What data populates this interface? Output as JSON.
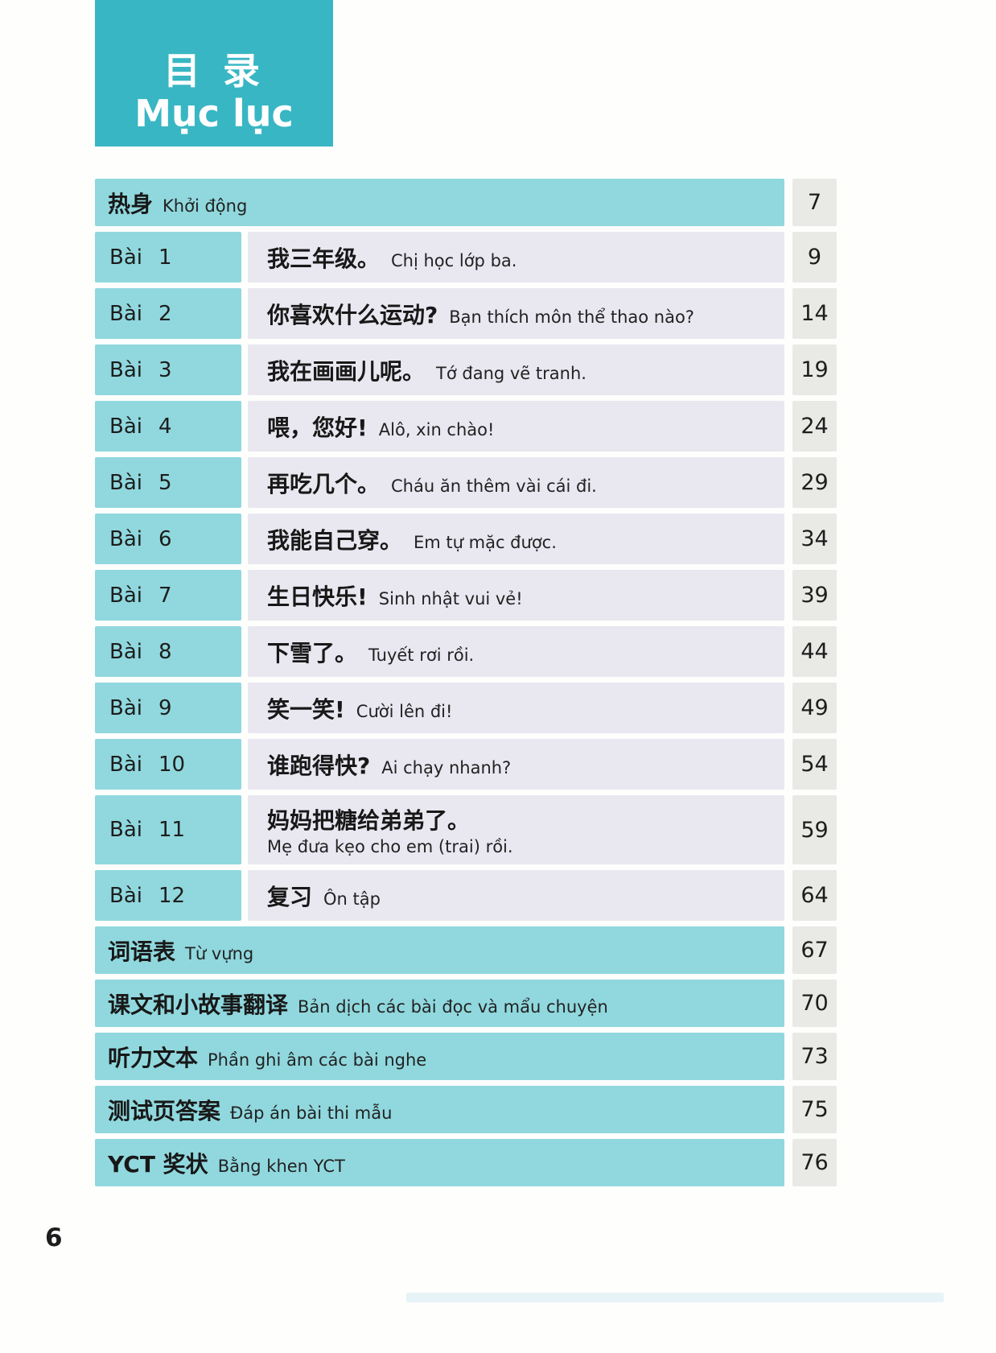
{
  "header": {
    "title_zh": "目 录",
    "title_vi": "Mục lục"
  },
  "footer": {
    "page_number": "6"
  },
  "colors": {
    "header_teal": "#38b6c3",
    "row_teal": "#90d8de",
    "row_lavender": "#e9e7f0",
    "page_cell_gray": "#e9e9e6",
    "text_dark": "#1d1d1d"
  },
  "toc": {
    "rows": [
      {
        "type": "section",
        "zh": "热身",
        "vi": "Khởi động",
        "page": "7"
      },
      {
        "type": "lesson",
        "label": "Bài",
        "num": "1",
        "zh": "我三年级。",
        "vi": "Chị học lớp ba.",
        "page": "9"
      },
      {
        "type": "lesson",
        "label": "Bài",
        "num": "2",
        "zh": "你喜欢什么运动?",
        "vi": "Bạn thích môn thể thao nào?",
        "page": "14"
      },
      {
        "type": "lesson",
        "label": "Bài",
        "num": "3",
        "zh": "我在画画儿呢。",
        "vi": "Tớ đang vẽ tranh.",
        "page": "19"
      },
      {
        "type": "lesson",
        "label": "Bài",
        "num": "4",
        "zh": "喂，您好!",
        "vi": "Alô, xin chào!",
        "page": "24"
      },
      {
        "type": "lesson",
        "label": "Bài",
        "num": "5",
        "zh": "再吃几个。",
        "vi": "Cháu ăn thêm vài cái đi.",
        "page": "29"
      },
      {
        "type": "lesson",
        "label": "Bài",
        "num": "6",
        "zh": "我能自己穿。",
        "vi": "Em tự mặc được.",
        "page": "34"
      },
      {
        "type": "lesson",
        "label": "Bài",
        "num": "7",
        "zh": "生日快乐!",
        "vi": "Sinh nhật vui vẻ!",
        "page": "39"
      },
      {
        "type": "lesson",
        "label": "Bài",
        "num": "8",
        "zh": "下雪了。",
        "vi": "Tuyết rơi rồi.",
        "page": "44"
      },
      {
        "type": "lesson",
        "label": "Bài",
        "num": "9",
        "zh": "笑一笑!",
        "vi": "Cười lên đi!",
        "page": "49"
      },
      {
        "type": "lesson",
        "label": "Bài",
        "num": "10",
        "zh": "谁跑得快?",
        "vi": "Ai chạy nhanh?",
        "page": "54"
      },
      {
        "type": "lesson",
        "label": "Bài",
        "num": "11",
        "zh": "妈妈把糖给弟弟了。",
        "vi": "Mẹ đưa kẹo cho em (trai) rồi.",
        "page": "59",
        "stacked": true
      },
      {
        "type": "lesson",
        "label": "Bài",
        "num": "12",
        "zh": "复习",
        "vi": "Ôn tập",
        "page": "64"
      },
      {
        "type": "section",
        "zh": "词语表",
        "vi": "Từ vựng",
        "page": "67"
      },
      {
        "type": "section",
        "zh": "课文和小故事翻译",
        "vi": "Bản dịch các bài đọc và mẩu chuyện",
        "page": "70"
      },
      {
        "type": "section",
        "zh": "听力文本",
        "vi": "Phần ghi âm các bài nghe",
        "page": "73"
      },
      {
        "type": "section",
        "zh": "测试页答案",
        "vi": "Đáp án bài thi mẫu",
        "page": "75"
      },
      {
        "type": "section",
        "zh": "YCT 奖状",
        "vi": "Bằng khen YCT",
        "page": "76"
      }
    ]
  }
}
